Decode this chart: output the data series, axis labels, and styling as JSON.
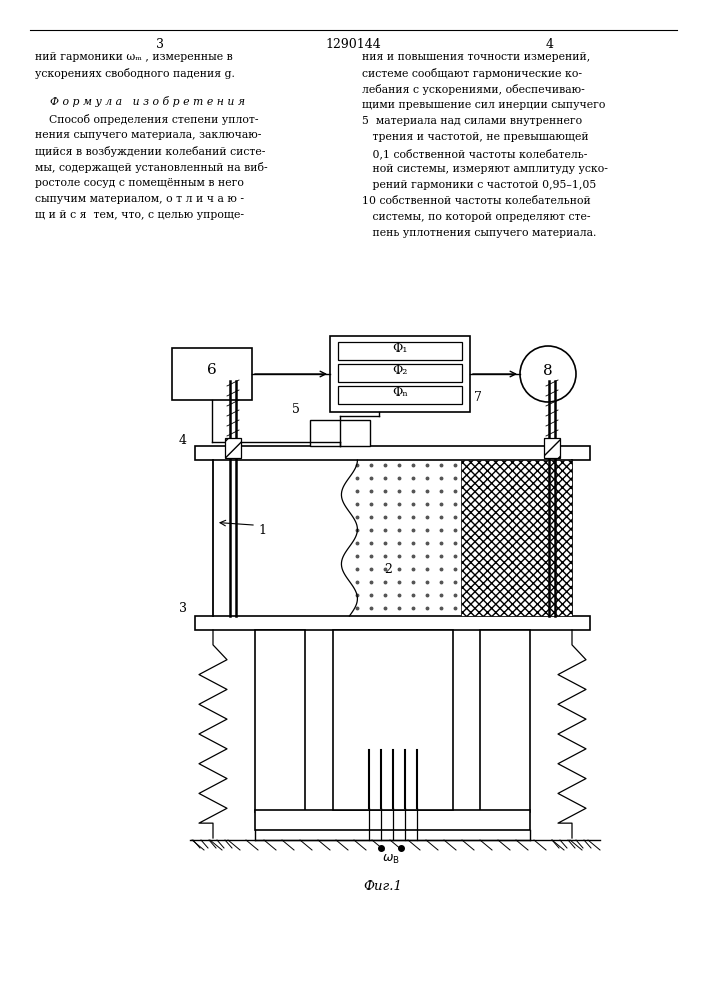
{
  "page_width": 7.07,
  "page_height": 10.0,
  "bg_color": "#ffffff",
  "line_color": "#000000",
  "text_color": "#000000",
  "left_text_lines": [
    "ний гармоники ωₘ , измеренные в",
    "ускорениях свободного падения g."
  ],
  "formula_header": "Ф о р м у л а   и з о б р е т е н и я",
  "left_body_lines": [
    "    Способ определения степени уплот-",
    "нения сыпучего материала, заключаю-",
    "щийся в возбуждении колебаний систе-",
    "мы, содержащей установленный на виб-",
    "ростоле сосуд с помещённым в него",
    "сыпучим материалом, о т л и ч а ю -",
    "щ и й с я  тем, что, с целью упроще-"
  ],
  "right_text_lines": [
    "ния и повышения точности измерений,",
    "системе сообщают гармонические ко-",
    "лебания с ускорениями, обеспечиваю-",
    "щими превышение сил инерции сыпучего"
  ],
  "right_numbered_lines": [
    "5  материала над силами внутреннего",
    "   трения и частотой, не превышающей",
    "   0,1 собственной частоты колебатель-",
    "   ной системы, измеряют амплитуду уско-",
    "   рений гармоники с частотой 0,95–1,05",
    "10 собственной частоты колебательной",
    "   системы, по которой определяют сте-",
    "   пень уплотнения сыпучего материала."
  ],
  "fig_caption": "Фиг.1"
}
